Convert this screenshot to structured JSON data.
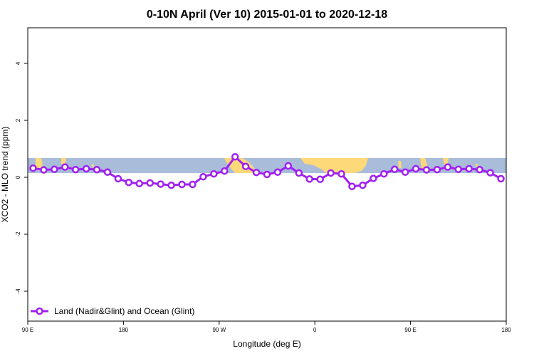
{
  "chart_data": {
    "type": "line",
    "title": "0-10N April (Ver 10)   2015-01-01 to 2020-12-18",
    "xlabel": "Longitude (deg E)",
    "ylabel": "XCO2 - MLO trend (ppm)",
    "x_ticks": [
      {
        "value": -90,
        "label": "90 E"
      },
      {
        "value": 0,
        "label": "180"
      },
      {
        "value": 90,
        "label": "90 W"
      },
      {
        "value": 180,
        "label": "0"
      },
      {
        "value": 270,
        "label": "90 E"
      },
      {
        "value": 360,
        "label": "180"
      }
    ],
    "xlim": [
      -90,
      360
    ],
    "y_ticks": [
      -4,
      -2,
      0,
      2,
      4
    ],
    "ylim": [
      -5.05,
      5.25
    ],
    "grid": false,
    "legend_position": "bottom-left",
    "colors": {
      "series": "#a020f0",
      "ocean": "#a9bcda",
      "land": "#fdd97a"
    },
    "map_band_latitude": "0-10N",
    "series": [
      {
        "name": "Land (Nadir&Glint) and Ocean (Glint)",
        "x": [
          -85,
          -75,
          -65,
          -55,
          -45,
          -35,
          -25,
          -15,
          -5,
          5,
          15,
          25,
          35,
          45,
          55,
          65,
          75,
          85,
          95,
          105,
          115,
          125,
          135,
          145,
          155,
          165,
          175,
          185,
          195,
          205,
          215,
          225,
          235,
          245,
          255,
          265,
          275,
          285,
          295,
          305,
          315,
          325,
          335,
          345,
          355
        ],
        "values": [
          0.32,
          0.26,
          0.28,
          0.36,
          0.27,
          0.3,
          0.27,
          0.18,
          -0.05,
          -0.18,
          -0.22,
          -0.2,
          -0.24,
          -0.28,
          -0.25,
          -0.25,
          0.02,
          0.12,
          0.22,
          0.72,
          0.38,
          0.17,
          0.1,
          0.18,
          0.4,
          0.15,
          -0.06,
          -0.07,
          0.15,
          0.12,
          -0.32,
          -0.28,
          -0.04,
          0.12,
          0.28,
          0.18,
          0.3,
          0.26,
          0.27,
          0.36,
          0.28,
          0.3,
          0.27,
          0.16,
          -0.05
        ]
      }
    ]
  }
}
